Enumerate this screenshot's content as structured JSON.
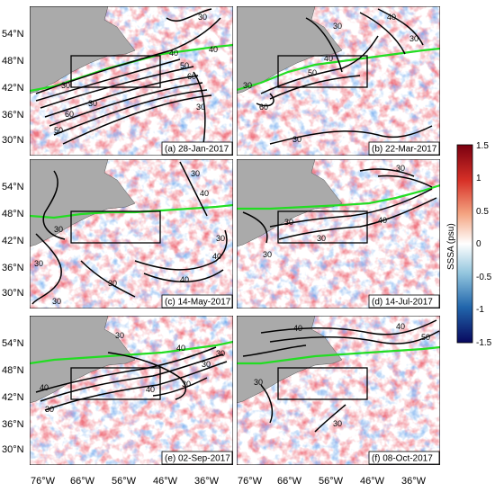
{
  "figure": {
    "lat_ticks": [
      "54°N",
      "48°N",
      "42°N",
      "36°N",
      "30°N"
    ],
    "lon_ticks": [
      "76°W",
      "66°W",
      "56°W",
      "46°W",
      "36°W"
    ],
    "colorbar": {
      "title": "SSSA (psu)",
      "ticks": [
        "1.5",
        "1",
        "0.5",
        "0",
        "-0.5",
        "-1",
        "-1.5"
      ],
      "min": -1.5,
      "max": 1.5
    },
    "panels": [
      {
        "label": "(a) 28-Jan-2017",
        "contour_labels": [
          "30",
          "40",
          "50",
          "60",
          "30",
          "50",
          "60",
          "30",
          "40",
          "30"
        ]
      },
      {
        "label": "(b) 22-Mar-2017",
        "contour_labels": [
          "30",
          "40",
          "50",
          "30",
          "40",
          "30",
          "60",
          "30"
        ]
      },
      {
        "label": "(c) 14-May-2017",
        "contour_labels": [
          "30",
          "40",
          "30",
          "30",
          "30",
          "40",
          "30",
          "40",
          "30"
        ]
      },
      {
        "label": "(d) 14-Jul-2017",
        "contour_labels": [
          "30",
          "30",
          "40",
          "30",
          "30"
        ]
      },
      {
        "label": "(e) 02-Sep-2017",
        "contour_labels": [
          "30",
          "40",
          "30",
          "40",
          "40",
          "30",
          "30",
          "30"
        ]
      },
      {
        "label": "(f) 08-Oct-2017",
        "contour_labels": [
          "40",
          "50",
          "40",
          "30",
          "30"
        ]
      }
    ]
  }
}
